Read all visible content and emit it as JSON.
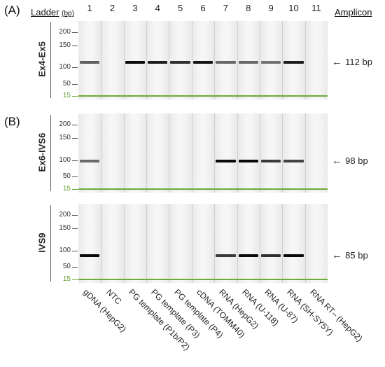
{
  "panel_a_letter": "(A)",
  "panel_b_letter": "(B)",
  "header": {
    "ladder": "Ladder",
    "ladder_unit": "(bp)",
    "amplicon": "Amplicon",
    "lane_numbers": [
      "1",
      "2",
      "3",
      "4",
      "5",
      "6",
      "7",
      "8",
      "9",
      "10",
      "11"
    ]
  },
  "sample_labels": [
    "gDNA (HepG2)",
    "NTC",
    "PG template (P1b/P2)",
    "PG template (P3)",
    "PG template (P4)",
    "cDNA (TOMM40)",
    "RNA (HepG2)",
    "RNA (U-118)",
    "RNA (U-87)",
    "RNA (SH-SY5Y)",
    "RNA RT– (HepG2)"
  ],
  "gels": [
    {
      "label": "Ex4-Ex5",
      "ticks": [
        "200",
        "150",
        "100",
        "50",
        "15"
      ],
      "tick_values": [
        200,
        150,
        100,
        50,
        15
      ],
      "amplicon": "112 bp",
      "amplicon_value": 112,
      "bands": [
        {
          "lane": 1,
          "intensity": 0.55
        },
        {
          "lane": 3,
          "intensity": 1.0
        },
        {
          "lane": 4,
          "intensity": 0.9
        },
        {
          "lane": 5,
          "intensity": 0.8
        },
        {
          "lane": 6,
          "intensity": 0.95
        },
        {
          "lane": 7,
          "intensity": 0.5
        },
        {
          "lane": 8,
          "intensity": 0.5
        },
        {
          "lane": 9,
          "intensity": 0.45
        },
        {
          "lane": 10,
          "intensity": 0.9
        }
      ]
    },
    {
      "label": "Ex6-IVS6",
      "ticks": [
        "200",
        "150",
        "100",
        "50",
        "15"
      ],
      "tick_values": [
        200,
        150,
        100,
        50,
        15
      ],
      "amplicon": "98 bp",
      "amplicon_value": 98,
      "bands": [
        {
          "lane": 1,
          "intensity": 0.5
        },
        {
          "lane": 7,
          "intensity": 1.0
        },
        {
          "lane": 8,
          "intensity": 1.0
        },
        {
          "lane": 9,
          "intensity": 0.75
        },
        {
          "lane": 10,
          "intensity": 0.7
        }
      ]
    },
    {
      "label": "IVS9",
      "ticks": [
        "200",
        "150",
        "100",
        "50",
        "15"
      ],
      "tick_values": [
        200,
        150,
        100,
        50,
        15
      ],
      "amplicon": "85 bp",
      "amplicon_value": 85,
      "bands": [
        {
          "lane": 1,
          "intensity": 1.0
        },
        {
          "lane": 7,
          "intensity": 0.75
        },
        {
          "lane": 8,
          "intensity": 1.0
        },
        {
          "lane": 9,
          "intensity": 0.8
        },
        {
          "lane": 10,
          "intensity": 1.0
        }
      ]
    }
  ],
  "colors": {
    "marker": "#6bab3a",
    "band": "#111111",
    "gel_bg": "#f1f1f1"
  }
}
